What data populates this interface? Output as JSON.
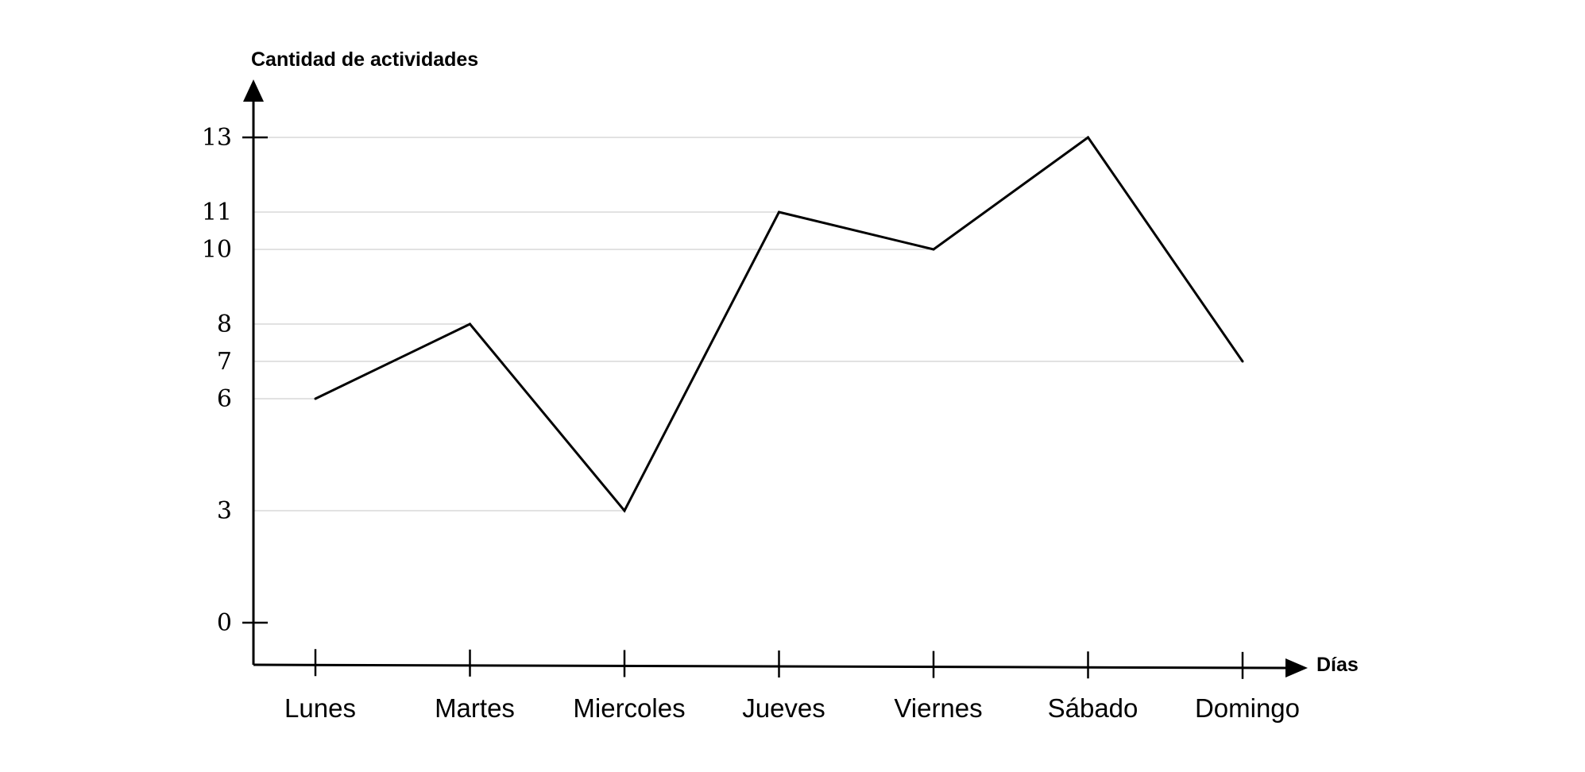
{
  "chart_data": {
    "type": "line",
    "ylabel": "Cantidad de actividades",
    "xlabel": "Días",
    "categories": [
      "Lunes",
      "Martes",
      "Miercoles",
      "Jueves",
      "Viernes",
      "Sábado",
      "Domingo"
    ],
    "series": [
      {
        "values": [
          6,
          8,
          3,
          11,
          10,
          13,
          7
        ]
      }
    ],
    "yticks": [
      0,
      3,
      6,
      7,
      8,
      10,
      11,
      13
    ],
    "ylim": [
      0,
      13
    ],
    "grid": "horizontal lines at each data value",
    "legend": "none"
  }
}
